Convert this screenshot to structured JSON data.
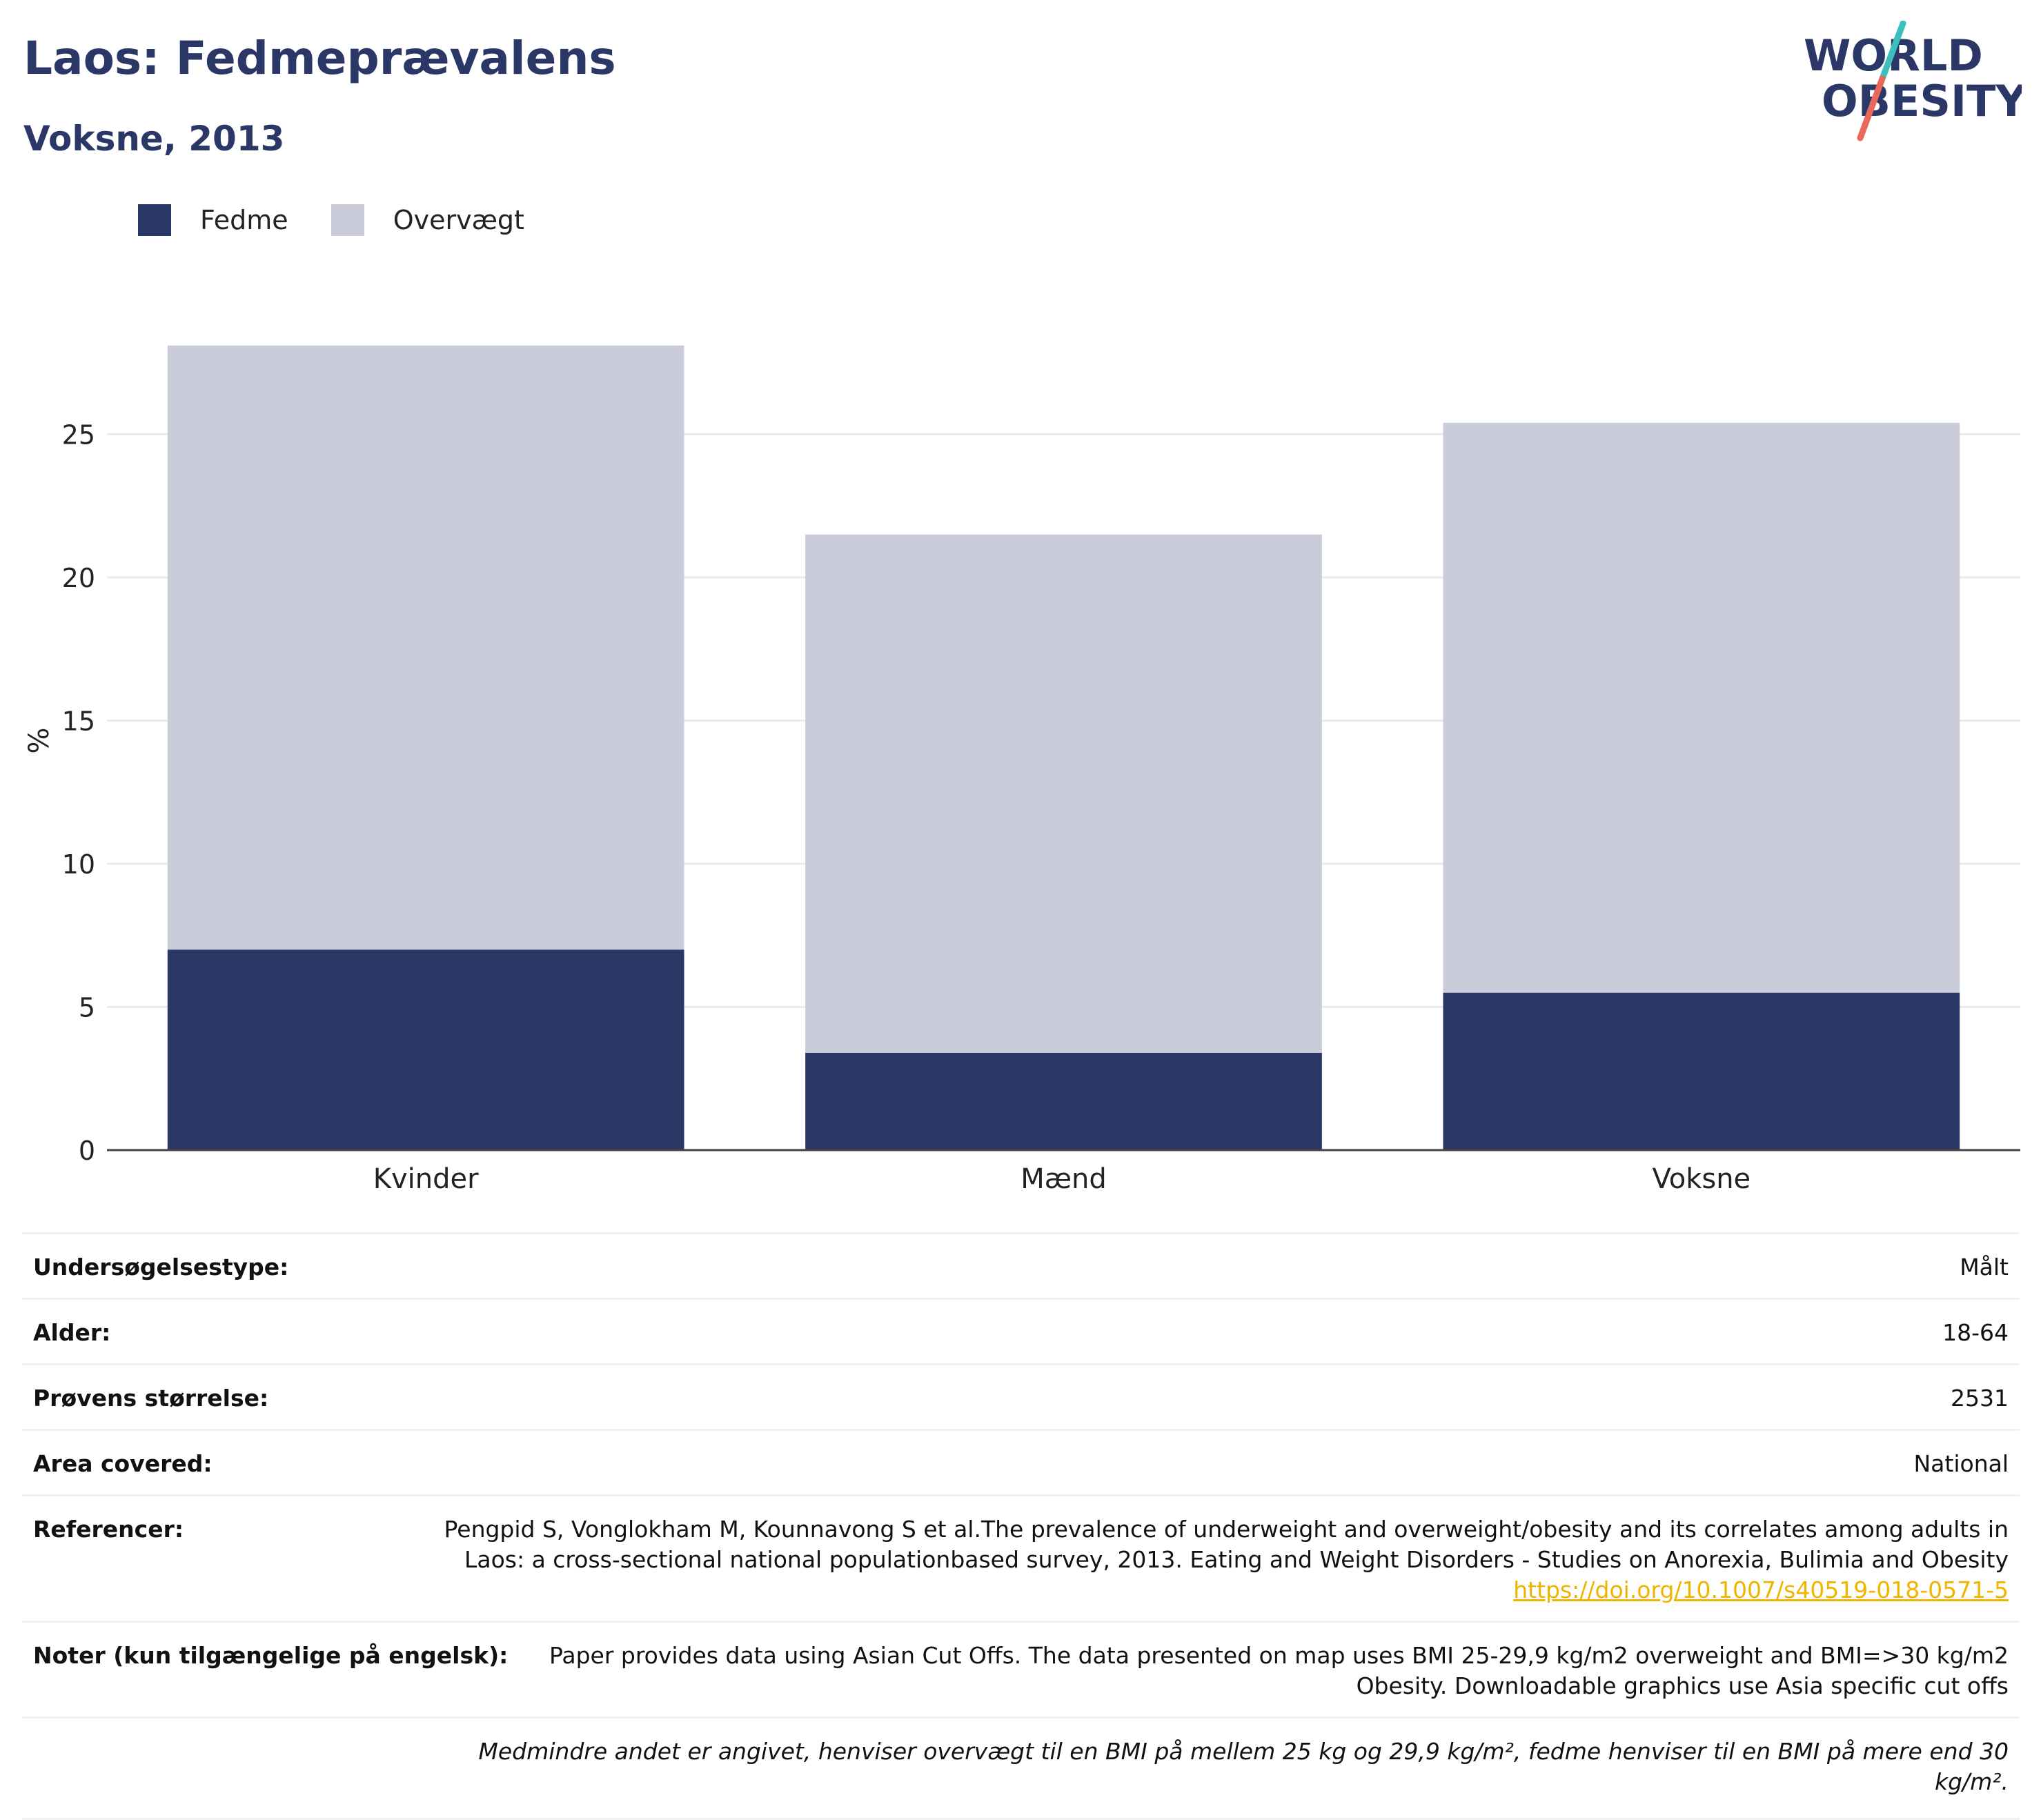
{
  "header": {
    "title": "Laos: Fedmeprævalens",
    "subtitle": "Voksne, 2013",
    "logo": {
      "line1": "WORLD",
      "line2": "OBESITY"
    }
  },
  "colors": {
    "obesity": "#2b3765",
    "overweight": "#cacdd9",
    "link": "#f0b400",
    "title": "#2b3767",
    "logo_teal": "#3dbfc0",
    "logo_red": "#e8695c"
  },
  "legend": [
    {
      "label": "Fedme",
      "color": "#2b3765"
    },
    {
      "label": "Overvægt",
      "color": "#cacdd9"
    }
  ],
  "chart_data": {
    "type": "bar",
    "stacked": true,
    "categories": [
      "Kvinder",
      "Mænd",
      "Voksne"
    ],
    "series": [
      {
        "name": "Fedme",
        "values": [
          7.0,
          3.4,
          5.5
        ]
      },
      {
        "name": "Overvægt",
        "values": [
          21.1,
          18.1,
          19.9
        ]
      }
    ],
    "ylabel": "%",
    "ylim": [
      0,
      28.6
    ],
    "yticks": [
      0,
      5,
      10,
      15,
      20,
      25
    ],
    "grid": true,
    "legend_position": "top-left"
  },
  "info": {
    "survey_type": {
      "label": "Undersøgelsestype:",
      "value": "Målt"
    },
    "age": {
      "label": "Alder:",
      "value": "18-64"
    },
    "sample_size": {
      "label": "Prøvens størrelse:",
      "value": "2531"
    },
    "area": {
      "label": "Area covered:",
      "value": "National"
    },
    "references": {
      "label": "Referencer:",
      "value": "Pengpid S, Vonglokham M, Kounnavong S et al.The prevalence of underweight and overweight/obesity and its correlates among adults in Laos: a cross-sectional national populationbased survey, 2013. Eating and Weight Disorders - Studies on Anorexia, Bulimia and Obesity ",
      "link": "https://doi.org/10.1007/s40519-018-0571-5"
    },
    "notes": {
      "label": "Noter (kun tilgængelige på engelsk):",
      "value": "Paper provides data using Asian Cut Offs. The data presented on map uses BMI 25-29,9 kg/m2 overweight and BMI=>30 kg/m2 Obesity. Downloadable graphics use Asia specific cut offs"
    },
    "footnote": "Medmindre andet er angivet, henviser overvægt til en BMI på mellem 25 kg og 29,9 kg/m², fedme henviser til en BMI på mere end 30 kg/m²."
  }
}
